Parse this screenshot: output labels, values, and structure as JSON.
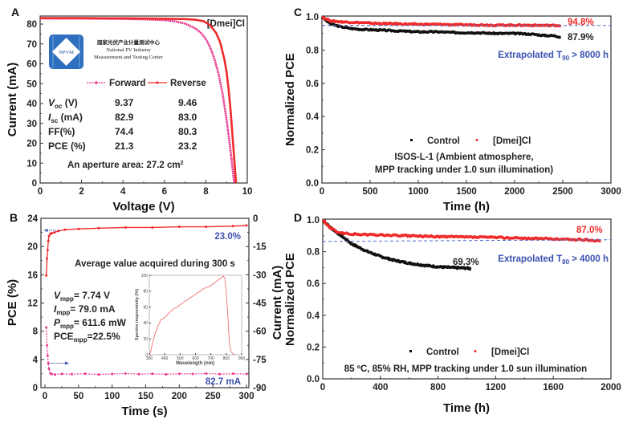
{
  "chart_data": [
    {
      "panel": "A",
      "type": "line",
      "xlabel": "Voltage (V)",
      "ylabel": "Current (mA)",
      "xlim": [
        0,
        10
      ],
      "ylim": [
        0,
        85
      ],
      "xticks": [
        "0",
        "2",
        "4",
        "6",
        "8",
        "10"
      ],
      "yticks": [
        "0",
        "10",
        "20",
        "30",
        "40",
        "50",
        "60",
        "70",
        "80"
      ],
      "label_tag": "[Dmei]Cl",
      "legend": [
        "Forward",
        "Reverse"
      ],
      "series": [
        {
          "name": "Forward",
          "color": "#e8368f",
          "isc": 82.9,
          "voc": 9.37,
          "x": [
            0,
            1,
            2,
            3,
            4,
            5,
            6,
            6.5,
            7,
            7.5,
            7.8,
            8.0,
            8.2,
            8.4,
            8.6,
            8.8,
            9.0,
            9.1,
            9.2,
            9.3,
            9.37
          ],
          "y": [
            82.9,
            82.8,
            82.8,
            82.7,
            82.6,
            82.4,
            82.0,
            81.4,
            80.2,
            77.8,
            75.2,
            72.5,
            68.5,
            63.0,
            55.5,
            45.5,
            32.0,
            24.0,
            15.5,
            6.5,
            0
          ]
        },
        {
          "name": "Reverse",
          "color": "#ef2a2a",
          "isc": 83.0,
          "voc": 9.46,
          "x": [
            0,
            1,
            2,
            3,
            4,
            5,
            6,
            7,
            7.5,
            7.9,
            8.2,
            8.5,
            8.7,
            8.9,
            9.0,
            9.1,
            9.2,
            9.3,
            9.38,
            9.46
          ],
          "y": [
            83.0,
            83.0,
            83.0,
            82.9,
            82.9,
            82.8,
            82.7,
            82.5,
            82.2,
            81.4,
            79.5,
            75.5,
            70.5,
            62.0,
            56.0,
            47.0,
            36.0,
            22.0,
            11.0,
            0
          ]
        }
      ],
      "table": {
        "headers": [
          "",
          "Forward",
          "Reverse"
        ],
        "rows": [
          {
            "param": "V",
            "sub": "oc",
            "unit": " (V)",
            "forward": "9.37",
            "reverse": "9.46"
          },
          {
            "param": "I",
            "sub": "sc",
            "unit": " (mA)",
            "forward": "82.9",
            "reverse": "83.0"
          },
          {
            "param": "FF(%)",
            "sub": "",
            "unit": "",
            "forward": "74.4",
            "reverse": "80.3"
          },
          {
            "param": "PCE (%)",
            "sub": "",
            "unit": "",
            "forward": "21.3",
            "reverse": "23.2"
          }
        ]
      },
      "aperture_text": "An aperture area: 27.2 cm",
      "aperture_sup": "2",
      "logo": {
        "abbr": "NPVM",
        "name_cn": "国家光伏产业计量测试中心",
        "name_en_1": "National PV Industry",
        "name_en_2": "Measurement and Testing Center",
        "color": "#2f6fbf"
      }
    },
    {
      "panel": "B",
      "type": "line",
      "xlabel": "Time (s)",
      "ylabel": "PCE (%)",
      "ylabel_right": "Current (mA)",
      "xlim": [
        -5,
        305
      ],
      "ylim": [
        0,
        24
      ],
      "ylim_right": [
        -90,
        0
      ],
      "xticks": [
        "0",
        "50",
        "100",
        "150",
        "200",
        "250",
        "300"
      ],
      "yticks": [
        "0",
        "4",
        "8",
        "12",
        "16",
        "20",
        "24"
      ],
      "yticks_right": [
        "0",
        "-15",
        "-30",
        "-45",
        "-60",
        "-75",
        "-90"
      ],
      "annotation": "Average value acquired during 300 s",
      "pce_final_label": "23.0%",
      "current_final_label": "82.7 mA",
      "mpp": [
        {
          "sym": "V",
          "sub": "mpp",
          "text": "= 7.74 V"
        },
        {
          "sym": "I",
          "sub": "mpp",
          "text": "= 79.0 mA"
        },
        {
          "sym": "P",
          "sub": "mpp",
          "text": "= 611.6 mW"
        },
        {
          "sym": "PCE",
          "sub": "mpp",
          "text": "=22.5%"
        }
      ],
      "series": [
        {
          "name": "PCE",
          "axis": "left",
          "color": "#ef2a2a",
          "x": [
            2,
            3,
            4,
            5,
            6,
            8,
            10,
            14,
            20,
            30,
            50,
            80,
            120,
            160,
            200,
            240,
            280,
            300
          ],
          "y": [
            15.9,
            18.3,
            19.5,
            20.8,
            21.5,
            21.8,
            21.9,
            22.0,
            22.2,
            22.4,
            22.5,
            22.6,
            22.7,
            22.7,
            22.8,
            22.8,
            22.9,
            23.0
          ]
        },
        {
          "name": "Current",
          "axis": "right",
          "color": "#e8368f",
          "x": [
            2,
            3,
            4,
            5,
            6,
            8,
            10,
            15,
            25,
            40,
            60,
            80,
            100,
            120,
            140,
            160,
            180,
            200,
            220,
            240,
            260,
            280,
            300
          ],
          "y": [
            -58,
            -67.5,
            -73,
            -77,
            -80,
            -82.3,
            -82.8,
            -83,
            -82.7,
            -82.8,
            -82.6,
            -83,
            -82.7,
            -82.5,
            -82.8,
            -82.6,
            -82.9,
            -82.6,
            -82.7,
            -82.5,
            -82.8,
            -82.6,
            -82.7
          ]
        }
      ],
      "inset": {
        "type": "line",
        "xlabel": "Wavelength (nm)",
        "ylabel": "Spectra responsivity (%)",
        "xlim": [
          300,
          900
        ],
        "ylim": [
          0,
          100
        ],
        "xticks": [
          "300",
          "400",
          "500",
          "600",
          "700",
          "800",
          "900"
        ],
        "yticks": [
          "0",
          "20",
          "40",
          "60",
          "80",
          "100"
        ],
        "x": [
          300,
          310,
          320,
          340,
          360,
          375,
          400,
          430,
          460,
          480,
          500,
          530,
          560,
          600,
          630,
          660,
          690,
          700,
          720,
          740,
          760,
          780,
          790,
          800,
          810,
          820,
          830,
          845,
          855
        ],
        "y": [
          0,
          5,
          14,
          28,
          38,
          44,
          47,
          53,
          58,
          60,
          63,
          67,
          71,
          76,
          80,
          84,
          86,
          87,
          90,
          93,
          96,
          99,
          97,
          80,
          50,
          15,
          4,
          1,
          0
        ],
        "color": "#f07070"
      }
    },
    {
      "panel": "C",
      "type": "line",
      "xlabel": "Time (h)",
      "ylabel": "Normalized PCE",
      "xlim": [
        0,
        3000
      ],
      "ylim": [
        0,
        1.0
      ],
      "xticks": [
        "0",
        "500",
        "1000",
        "1500",
        "2000",
        "2500",
        "3000"
      ],
      "yticks": [
        "0.0",
        "0.2",
        "0.4",
        "0.6",
        "0.8",
        "1.0"
      ],
      "legend": [
        "Control",
        "[Dmei]Cl"
      ],
      "condition_1": "ISOS-L-1 (Ambient atmosphere,",
      "condition_2": "MPP tracking under 1.0 sun illumination)",
      "extrapolated": "Extrapolated T",
      "extrapolated_sub": "90",
      "extrapolated_rest": " > 8000 h",
      "final_dmei": "94.8%",
      "final_control": "87.9%",
      "reference_line": 0.948,
      "series": [
        {
          "name": "Control",
          "color": "#111111",
          "x": [
            0,
            50,
            100,
            200,
            300,
            400,
            600,
            800,
            1000,
            1200,
            1400,
            1600,
            1800,
            2000,
            2200,
            2300,
            2400,
            2480
          ],
          "y": [
            1.0,
            0.975,
            0.955,
            0.94,
            0.93,
            0.925,
            0.92,
            0.915,
            0.91,
            0.91,
            0.905,
            0.905,
            0.9,
            0.9,
            0.895,
            0.888,
            0.887,
            0.879
          ]
        },
        {
          "name": "[Dmei]Cl",
          "color": "#ef2a2a",
          "x": [
            0,
            50,
            100,
            200,
            400,
            600,
            800,
            1000,
            1200,
            1400,
            1600,
            1800,
            2000,
            2200,
            2400,
            2480
          ],
          "y": [
            1.0,
            0.985,
            0.975,
            0.97,
            0.965,
            0.96,
            0.958,
            0.955,
            0.955,
            0.952,
            0.952,
            0.95,
            0.95,
            0.949,
            0.948,
            0.948
          ]
        }
      ]
    },
    {
      "panel": "D",
      "type": "line",
      "xlabel": "Time (h)",
      "ylabel": "Normalized PCE",
      "xlim": [
        0,
        2000
      ],
      "ylim": [
        0,
        1.0
      ],
      "xticks": [
        "0",
        "400",
        "800",
        "1200",
        "1600",
        "2000"
      ],
      "yticks": [
        "0.0",
        "0.2",
        "0.4",
        "0.6",
        "0.8",
        "1.0"
      ],
      "legend": [
        "Control",
        "[Dmei]Cl"
      ],
      "condition": "85 ºC, 85% RH, MPP tracking under 1.0 sun illumination",
      "extrapolated": "Extrapolated T",
      "extrapolated_sub": "80",
      "extrapolated_rest": " > 4000 h",
      "final_dmei": "87.0%",
      "final_control": "69.3%",
      "reference_line": 0.87,
      "series": [
        {
          "name": "Control",
          "color": "#111111",
          "x": [
            0,
            50,
            100,
            150,
            200,
            300,
            400,
            500,
            600,
            700,
            800,
            900,
            1000,
            1030
          ],
          "y": [
            1.0,
            0.955,
            0.92,
            0.885,
            0.85,
            0.805,
            0.77,
            0.745,
            0.728,
            0.715,
            0.705,
            0.7,
            0.697,
            0.693
          ]
        },
        {
          "name": "[Dmei]Cl",
          "color": "#ef2a2a",
          "x": [
            0,
            50,
            100,
            150,
            200,
            400,
            600,
            800,
            1000,
            1200,
            1400,
            1600,
            1800,
            1930
          ],
          "y": [
            1.0,
            0.95,
            0.925,
            0.915,
            0.91,
            0.905,
            0.9,
            0.895,
            0.892,
            0.89,
            0.885,
            0.88,
            0.875,
            0.87
          ]
        }
      ]
    }
  ]
}
